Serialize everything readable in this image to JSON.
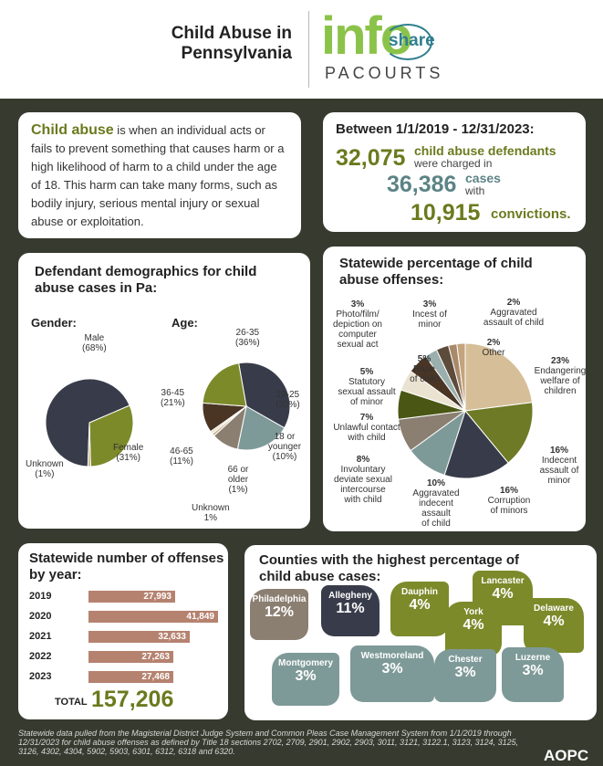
{
  "header": {
    "title_line1": "Child Abuse in",
    "title_line2": "Pennsylvania",
    "logo_info": "info",
    "logo_share": "share",
    "logo_pacourts": "PACOURTS"
  },
  "intro": {
    "term": "Child abuse",
    "text": " is when an individual acts or fails to prevent something that causes harm or a high likelihood of harm to a child under the age of 18. This harm can take many forms, such as bodily injury, serious mental injury or sexual abuse or exploitation."
  },
  "stats": {
    "heading": "Between 1/1/2019 - 12/31/2023:",
    "defendants": "32,075",
    "defendants_l1": "child abuse defendants",
    "defendants_l2": "were charged in",
    "cases": "36,386",
    "cases_l1": "cases",
    "cases_l2": "with",
    "convictions": "10,915",
    "convictions_label": "convictions."
  },
  "demographics": {
    "heading_l1": "Defendant demographics for child",
    "heading_l2": "abuse cases in Pa:",
    "gender_label": "Gender:",
    "age_label": "Age:",
    "gender": [
      {
        "name": "Male",
        "pct": "(68%)",
        "value": 68,
        "color": "#383c4a"
      },
      {
        "name": "Female",
        "pct": "(31%)",
        "value": 31,
        "color": "#7c8a2a"
      },
      {
        "name": "Unknown",
        "pct": "(1%)",
        "value": 1,
        "color": "#c9b28d"
      }
    ],
    "age": [
      {
        "name": "26-35",
        "pct": "(36%)",
        "value": 36,
        "color": "#383c4a"
      },
      {
        "name": "19-25",
        "pct": "(20%)",
        "value": 20,
        "color": "#7e9a98"
      },
      {
        "name": "18 or younger",
        "pct": "(10%)",
        "value": 10,
        "color": "#8b7f72"
      },
      {
        "name": "66 or older",
        "pct": "(1%)",
        "value": 1,
        "color": "#c9b28d"
      },
      {
        "name": "Unknown",
        "pct": "1%",
        "value": 1,
        "color": "#e7dcc6"
      },
      {
        "name": "46-65",
        "pct": "(11%)",
        "value": 11,
        "color": "#4a3525"
      },
      {
        "name": "36-45",
        "pct": "(21%)",
        "value": 21,
        "color": "#7c8a2a"
      }
    ]
  },
  "offenses": {
    "heading_l1": "Statewide percentage of child",
    "heading_l2": "abuse offenses:",
    "items": [
      {
        "pct": "23%",
        "l1": "Endangering",
        "l2": "welfare of",
        "l3": "children",
        "value": 23,
        "color": "#d6bf98"
      },
      {
        "pct": "16%",
        "l1": "Indecent",
        "l2": "assault of",
        "l3": "minor",
        "value": 16,
        "color": "#6e7a25"
      },
      {
        "pct": "16%",
        "l1": "Corruption",
        "l2": "of minors",
        "l3": "",
        "value": 16,
        "color": "#383c4a"
      },
      {
        "pct": "10%",
        "l1": "Aggravated",
        "l2": "indecent",
        "l3": "assault",
        "l4": "of child",
        "value": 10,
        "color": "#7e9a98"
      },
      {
        "pct": "8%",
        "l1": "Involuntary",
        "l2": "deviate sexual",
        "l3": "intercourse",
        "l4": "with child",
        "value": 8,
        "color": "#8b7f72"
      },
      {
        "pct": "7%",
        "l1": "Unlawful contact",
        "l2": "with child",
        "l3": "",
        "value": 7,
        "color": "#4a5714"
      },
      {
        "pct": "5%",
        "l1": "Statutory",
        "l2": "sexual assault",
        "l3": "of minor",
        "value": 5,
        "color": "#ebe3d2"
      },
      {
        "pct": "5%",
        "l1": "Rape",
        "l2": "of child",
        "l3": "",
        "value": 5,
        "color": "#4a3525"
      },
      {
        "pct": "3%",
        "l1": "Photo/film/",
        "l2": "depiction on",
        "l3": "computer",
        "l4": "sexual act",
        "value": 3,
        "color": "#9bb0ae"
      },
      {
        "pct": "3%",
        "l1": "Incest of",
        "l2": "minor",
        "l3": "",
        "value": 3,
        "color": "#5d4b3b"
      },
      {
        "pct": "2%",
        "l1": "Aggravated",
        "l2": "assault of child",
        "l3": "",
        "value": 2,
        "color": "#a88a6b"
      },
      {
        "pct": "2%",
        "l1": "Other",
        "l2": "",
        "l3": "",
        "value": 2,
        "color": "#c4a47e"
      }
    ]
  },
  "yearly": {
    "heading_l1": "Statewide number of offenses",
    "heading_l2": "by year:",
    "rows": [
      {
        "year": "2019",
        "label": "27,993",
        "value": 27993
      },
      {
        "year": "2020",
        "label": "41,849",
        "value": 41849
      },
      {
        "year": "2021",
        "label": "32,633",
        "value": 32633
      },
      {
        "year": "2022",
        "label": "27,263",
        "value": 27263
      },
      {
        "year": "2023",
        "label": "27,468",
        "value": 27468
      }
    ],
    "total_label": "TOTAL",
    "total": "157,206"
  },
  "counties": {
    "heading_l1": "Counties with the highest percentage of",
    "heading_l2": "child abuse cases:",
    "items": [
      {
        "name": "Philadelphia",
        "pct": "12%",
        "color": "#8b7f72"
      },
      {
        "name": "Allegheny",
        "pct": "11%",
        "color": "#383c4a"
      },
      {
        "name": "Dauphin",
        "pct": "4%",
        "color": "#7c8a2a"
      },
      {
        "name": "Lancaster",
        "pct": "4%",
        "color": "#7c8a2a"
      },
      {
        "name": "York",
        "pct": "4%",
        "color": "#7c8a2a"
      },
      {
        "name": "Delaware",
        "pct": "4%",
        "color": "#7c8a2a"
      },
      {
        "name": "Montgomery",
        "pct": "3%",
        "color": "#7e9a98"
      },
      {
        "name": "Westmoreland",
        "pct": "3%",
        "color": "#7e9a98"
      },
      {
        "name": "Chester",
        "pct": "3%",
        "color": "#7e9a98"
      },
      {
        "name": "Luzerne",
        "pct": "3%",
        "color": "#7e9a98"
      }
    ]
  },
  "footer": {
    "text": "Statewide data pulled from the Magisterial District Judge System and Common Pleas Case Management System from 1/1/2019 through 12/31/2023 for child abuse offenses as defined by Title 18 sections 2702, 2709, 2901, 2902, 2903, 3011, 3121, 3122.1, 3123, 3124, 3125, 3126, 4302, 4304, 5902, 5903, 6301, 6312, 6318 and 6320.",
    "brand": "AOPC"
  },
  "colors": {
    "background": "#373a2f",
    "accent_green": "#6b7a1e",
    "accent_teal": "#4f7577",
    "bar": "#b5826f"
  }
}
